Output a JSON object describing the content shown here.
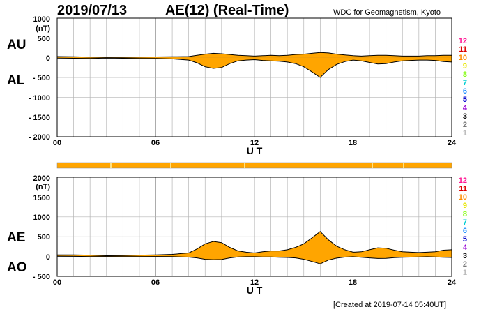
{
  "header": {
    "date": "2019/07/13",
    "title": "AE(12) (Real-Time)",
    "organization": "WDC for Geomagnetism, Kyoto"
  },
  "footer": {
    "created": "[Created at 2019-07-14 05:40UT]"
  },
  "colors": {
    "fill": "#ffa500",
    "grid": "#b4b4b4",
    "trace": "#000000",
    "station_counts": [
      "#ff1493",
      "#dc0000",
      "#ff8c00",
      "#e6e600",
      "#7cfc00",
      "#00ced1",
      "#1e90ff",
      "#0000cd",
      "#9400d3",
      "#000000",
      "#777777",
      "#bbbbbb"
    ]
  },
  "legend": {
    "station_counts": [
      "12",
      "11",
      "10",
      "9",
      "8",
      "7",
      "6",
      "5",
      "4",
      "3",
      "2",
      "1"
    ]
  },
  "chart_data": [
    {
      "type": "area",
      "ylabel_left": [
        "AU",
        "AL"
      ],
      "unit": "(nT)",
      "xlabel": "U T",
      "xticks": [
        "00",
        "06",
        "12",
        "18",
        "24"
      ],
      "ytick_labels": [
        "1000",
        "500",
        "0",
        "- 500",
        "- 1000",
        "- 1500",
        "- 2000"
      ],
      "ylim": [
        -2000,
        1000
      ],
      "xlim": [
        0,
        24
      ],
      "grid": true,
      "series": [
        {
          "name": "AU",
          "x": [
            0,
            1,
            2,
            3,
            4,
            5,
            6,
            7,
            8,
            8.5,
            9,
            9.5,
            10,
            10.5,
            11,
            11.5,
            12,
            12.5,
            13,
            13.5,
            14,
            14.5,
            15,
            15.5,
            16,
            16.5,
            17,
            17.5,
            18,
            18.5,
            19,
            19.5,
            20,
            20.5,
            21,
            21.5,
            22,
            22.5,
            23,
            23.5,
            24
          ],
          "values": [
            30,
            25,
            15,
            10,
            10,
            15,
            20,
            25,
            30,
            60,
            90,
            110,
            100,
            80,
            60,
            50,
            40,
            50,
            60,
            50,
            60,
            80,
            90,
            110,
            130,
            120,
            90,
            70,
            50,
            40,
            50,
            60,
            60,
            50,
            40,
            40,
            40,
            50,
            50,
            60,
            60
          ]
        },
        {
          "name": "AL",
          "x": [
            0,
            1,
            2,
            3,
            4,
            5,
            6,
            7,
            8,
            8.5,
            9,
            9.5,
            10,
            10.5,
            11,
            11.5,
            12,
            12.5,
            13,
            13.5,
            14,
            14.5,
            15,
            15.5,
            16,
            16.5,
            17,
            17.5,
            18,
            18.5,
            19,
            19.5,
            20,
            20.5,
            21,
            21.5,
            22,
            22.5,
            23,
            23.5,
            24
          ],
          "values": [
            -10,
            -15,
            -20,
            -10,
            -15,
            -20,
            -20,
            -30,
            -60,
            -130,
            -230,
            -270,
            -250,
            -150,
            -80,
            -60,
            -50,
            -70,
            -80,
            -90,
            -110,
            -150,
            -230,
            -360,
            -500,
            -300,
            -170,
            -100,
            -60,
            -80,
            -120,
            -160,
            -150,
            -110,
            -80,
            -70,
            -60,
            -60,
            -70,
            -100,
            -110
          ]
        }
      ]
    },
    {
      "type": "area",
      "ylabel_left": [
        "AE",
        "AO"
      ],
      "unit": "(nT)",
      "xlabel": "U T",
      "xticks": [
        "00",
        "06",
        "12",
        "18",
        "24"
      ],
      "ytick_labels": [
        "2000",
        "1500",
        "1000",
        "500",
        "0",
        "- 500"
      ],
      "ylim": [
        -500,
        2000
      ],
      "xlim": [
        0,
        24
      ],
      "grid": true,
      "series": [
        {
          "name": "AE",
          "x": [
            0,
            1,
            2,
            3,
            4,
            5,
            6,
            7,
            8,
            8.5,
            9,
            9.5,
            10,
            10.5,
            11,
            11.5,
            12,
            12.5,
            13,
            13.5,
            14,
            14.5,
            15,
            15.5,
            16,
            16.5,
            17,
            17.5,
            18,
            18.5,
            19,
            19.5,
            20,
            20.5,
            21,
            21.5,
            22,
            22.5,
            23,
            23.5,
            24
          ],
          "values": [
            40,
            40,
            35,
            20,
            25,
            35,
            40,
            55,
            90,
            190,
            320,
            380,
            350,
            230,
            140,
            110,
            90,
            120,
            140,
            140,
            170,
            230,
            320,
            470,
            630,
            420,
            260,
            170,
            110,
            120,
            170,
            220,
            210,
            160,
            120,
            110,
            100,
            110,
            120,
            160,
            170
          ]
        },
        {
          "name": "AO",
          "x": [
            0,
            1,
            2,
            3,
            4,
            5,
            6,
            7,
            8,
            8.5,
            9,
            9.5,
            10,
            10.5,
            11,
            11.5,
            12,
            12.5,
            13,
            13.5,
            14,
            14.5,
            15,
            15.5,
            16,
            16.5,
            17,
            17.5,
            18,
            18.5,
            19,
            19.5,
            20,
            20.5,
            21,
            21.5,
            22,
            22.5,
            23,
            23.5,
            24
          ],
          "values": [
            10,
            5,
            -3,
            0,
            -3,
            -3,
            0,
            -3,
            -15,
            -35,
            -70,
            -80,
            -75,
            -35,
            -10,
            -5,
            -5,
            -10,
            -10,
            -20,
            -25,
            -35,
            -70,
            -125,
            -185,
            -90,
            -40,
            -15,
            -5,
            -20,
            -35,
            -50,
            -45,
            -30,
            -20,
            -15,
            -10,
            -5,
            -10,
            -20,
            -25
          ]
        }
      ]
    }
  ]
}
